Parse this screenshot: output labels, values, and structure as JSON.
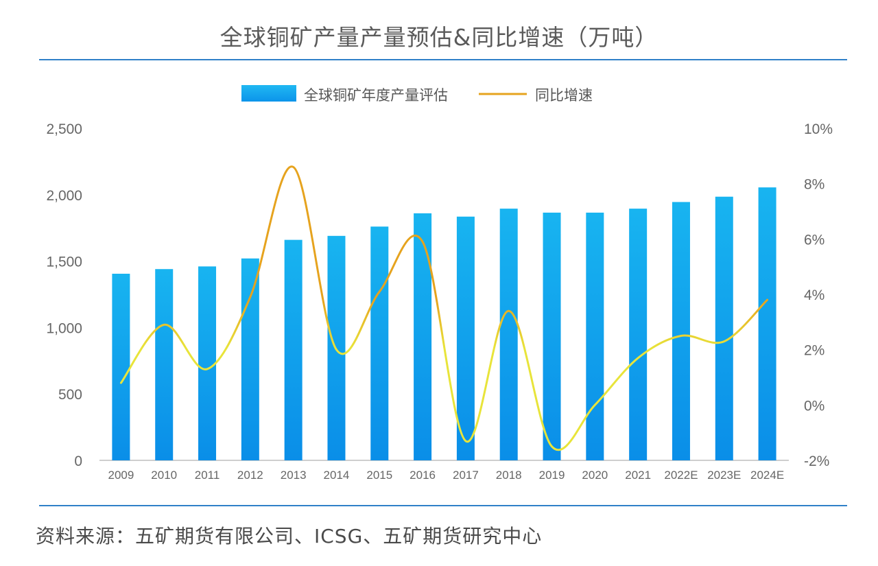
{
  "chart_data": {
    "type": "bar",
    "title": "全球铜矿产量产量预估&同比增速（万吨）",
    "source": "资料来源：五矿期货有限公司、ICSG、五矿期货研究中心",
    "categories": [
      "2009",
      "2010",
      "2011",
      "2012",
      "2013",
      "2014",
      "2015",
      "2016",
      "2017",
      "2018",
      "2019",
      "2020",
      "2021",
      "2022E",
      "2023E",
      "2024E"
    ],
    "series": [
      {
        "name": "全球铜矿年度产量评估",
        "type": "bar",
        "axis": "left",
        "color": "#1ea6ea",
        "values": [
          1405,
          1440,
          1460,
          1520,
          1660,
          1690,
          1760,
          1860,
          1835,
          1895,
          1865,
          1865,
          1895,
          1945,
          1985,
          2055
        ]
      },
      {
        "name": "同比增速",
        "type": "line",
        "axis": "right",
        "color": "#e8e43a",
        "color_peak": "#e6a31e",
        "values": [
          0.8,
          2.9,
          1.3,
          3.9,
          8.6,
          2.0,
          4.1,
          5.9,
          -1.3,
          3.4,
          -1.5,
          0.0,
          1.7,
          2.5,
          2.3,
          3.8
        ]
      }
    ],
    "y_left": {
      "min": 0,
      "max": 2500,
      "ticks": [
        "0",
        "500",
        "1,000",
        "1,500",
        "2,000",
        "2,500"
      ],
      "tick_values": [
        0,
        500,
        1000,
        1500,
        2000,
        2500
      ]
    },
    "y_right": {
      "min": -2,
      "max": 10,
      "ticks": [
        "-2%",
        "0%",
        "2%",
        "4%",
        "6%",
        "8%",
        "10%"
      ],
      "tick_values": [
        -2,
        0,
        2,
        4,
        6,
        8,
        10
      ]
    },
    "legend": "top-center",
    "grid": false
  }
}
